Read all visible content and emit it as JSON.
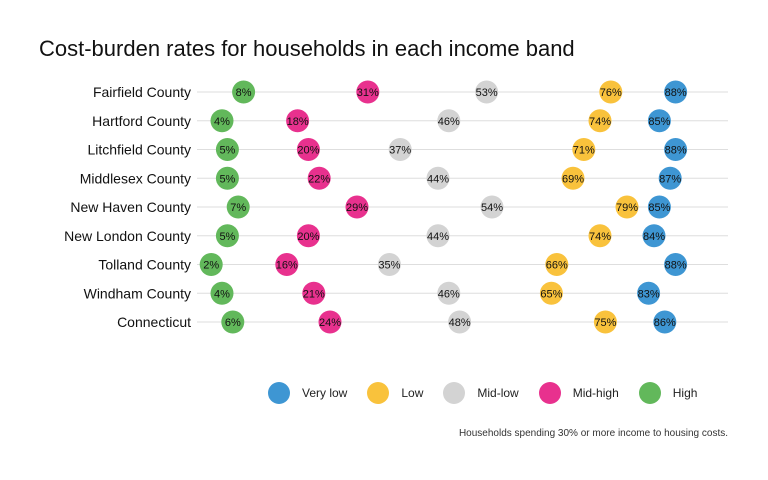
{
  "chart_data": {
    "type": "scatter",
    "title": "Cost-burden rates for households in each income band",
    "caption": "Households spending 30% or more income to housing costs.",
    "categories": [
      "Fairfield County",
      "Hartford County",
      "Litchfield County",
      "Middlesex County",
      "New Haven County",
      "New London County",
      "Tolland County",
      "Windham County",
      "Connecticut"
    ],
    "series": [
      {
        "name": "Very low",
        "color": "#3E96D3",
        "values": [
          88,
          85,
          88,
          87,
          85,
          84,
          88,
          83,
          86
        ],
        "labels": [
          "88%",
          "85%",
          "88%",
          "87%",
          "85%",
          "84%",
          "88%",
          "83%",
          "86%"
        ]
      },
      {
        "name": "Low",
        "color": "#F9C23C",
        "values": [
          76,
          74,
          71,
          69,
          79,
          74,
          66,
          65,
          75
        ],
        "labels": [
          "76%",
          "74%",
          "71%",
          "69%",
          "79%",
          "74%",
          "66%",
          "65%",
          "75%"
        ]
      },
      {
        "name": "Mid-low",
        "color": "#D3D3D3",
        "values": [
          53,
          46,
          37,
          44,
          54,
          44,
          35,
          46,
          48
        ],
        "labels": [
          "53%",
          "46%",
          "37%",
          "44%",
          "54%",
          "44%",
          "35%",
          "46%",
          "48%"
        ]
      },
      {
        "name": "Mid-high",
        "color": "#E8318E",
        "values": [
          31,
          18,
          20,
          22,
          29,
          20,
          16,
          21,
          24
        ],
        "labels": [
          "31%",
          "18%",
          "20%",
          "22%",
          "29%",
          "20%",
          "16%",
          "21%",
          "24%"
        ]
      },
      {
        "name": "High",
        "color": "#62B85B",
        "values": [
          8,
          4,
          5,
          5,
          7,
          5,
          2,
          4,
          6
        ],
        "labels": [
          "8%",
          "4%",
          "5%",
          "5%",
          "7%",
          "5%",
          "2%",
          "4%",
          "6%"
        ]
      }
    ],
    "legend_position": "bottom",
    "grid": "horizontal"
  }
}
